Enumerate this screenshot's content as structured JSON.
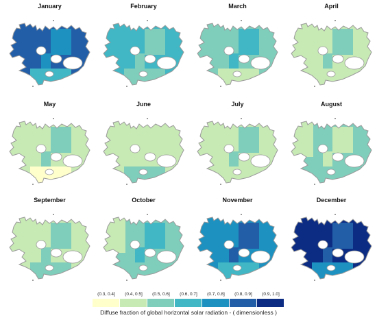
{
  "legend": {
    "classes": [
      {
        "label": "(0.3, 0.4]",
        "color": "#ffffcc"
      },
      {
        "label": "(0.4, 0.5]",
        "color": "#c7e9b4"
      },
      {
        "label": "(0.5, 0.6]",
        "color": "#7fcdbb"
      },
      {
        "label": "(0.6, 0.7]",
        "color": "#41b6c4"
      },
      {
        "label": "(0.7, 0.8]",
        "color": "#1d91c0"
      },
      {
        "label": "(0.8, 0.9]",
        "color": "#225ea8"
      },
      {
        "label": "(0.9, 1.0]",
        "color": "#0c2c84"
      }
    ],
    "title": "Diffuse fraction of global horizontal solar radiation -  ( dimensionless )"
  },
  "months": [
    {
      "name": "January",
      "base": "#225ea8",
      "patch": "#1d91c0",
      "west": "#225ea8",
      "south": "#41b6c4"
    },
    {
      "name": "February",
      "base": "#41b6c4",
      "patch": "#7fcdbb",
      "west": "#41b6c4",
      "south": "#7fcdbb"
    },
    {
      "name": "March",
      "base": "#7fcdbb",
      "patch": "#41b6c4",
      "west": "#7fcdbb",
      "south": "#c7e9b4"
    },
    {
      "name": "April",
      "base": "#c7e9b4",
      "patch": "#7fcdbb",
      "west": "#c7e9b4",
      "south": "#c7e9b4"
    },
    {
      "name": "May",
      "base": "#c7e9b4",
      "patch": "#7fcdbb",
      "west": "#c7e9b4",
      "south": "#ffffcc"
    },
    {
      "name": "June",
      "base": "#c7e9b4",
      "patch": "#c7e9b4",
      "west": "#c7e9b4",
      "south": "#7fcdbb"
    },
    {
      "name": "July",
      "base": "#c7e9b4",
      "patch": "#7fcdbb",
      "west": "#c7e9b4",
      "south": "#c7e9b4"
    },
    {
      "name": "August",
      "base": "#7fcdbb",
      "patch": "#c7e9b4",
      "west": "#c7e9b4",
      "south": "#7fcdbb"
    },
    {
      "name": "September",
      "base": "#c7e9b4",
      "patch": "#7fcdbb",
      "west": "#c7e9b4",
      "south": "#7fcdbb"
    },
    {
      "name": "October",
      "base": "#7fcdbb",
      "patch": "#41b6c4",
      "west": "#c7e9b4",
      "south": "#7fcdbb"
    },
    {
      "name": "November",
      "base": "#1d91c0",
      "patch": "#225ea8",
      "west": "#1d91c0",
      "south": "#41b6c4"
    },
    {
      "name": "December",
      "base": "#0c2c84",
      "patch": "#225ea8",
      "west": "#0c2c84",
      "south": "#1d91c0"
    }
  ]
}
